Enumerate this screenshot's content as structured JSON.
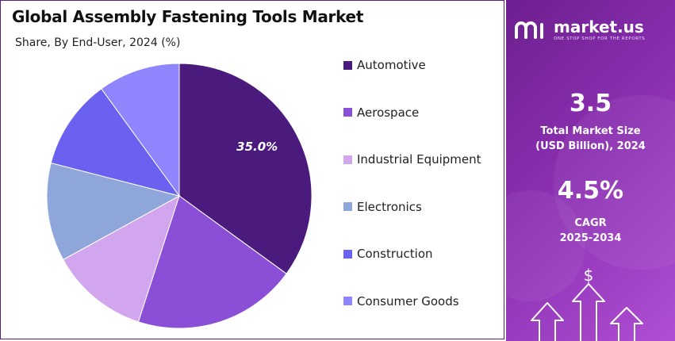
{
  "chart_data": {
    "type": "pie",
    "title": "Global Assembly Fastening Tools Market",
    "subtitle": "Share, By End-User, 2024 (%)",
    "categories": [
      "Automotive",
      "Aerospace",
      "Industrial Equipment",
      "Electronics",
      "Construction",
      "Consumer Goods"
    ],
    "values": [
      35.0,
      20.0,
      12.0,
      12.0,
      11.0,
      10.0
    ],
    "colors": [
      "#4a1a7c",
      "#8a4fd6",
      "#d2a6ee",
      "#8ea6d9",
      "#6b61f0",
      "#8f86ff"
    ],
    "data_labels": [
      "35.0%",
      "",
      "",
      "",
      "",
      ""
    ],
    "legend_placement": "right"
  },
  "brand": {
    "name": "market.us",
    "tagline": "ONE STOP SHOP FOR THE REPORTS"
  },
  "stats": {
    "market_size_value": "3.5",
    "market_size_label_1": "Total Market Size",
    "market_size_label_2": "(USD Billion), 2024",
    "cagr_value": "4.5%",
    "cagr_label_1": "CAGR",
    "cagr_label_2": "2025-2034"
  },
  "icons": [
    "market-us-logo-icon",
    "dollar-icon",
    "growth-arrows-icon"
  ]
}
